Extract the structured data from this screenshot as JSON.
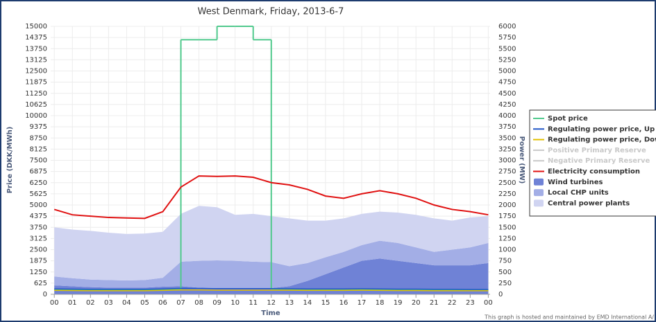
{
  "chart_data": {
    "type": "line",
    "title": "West Denmark, Friday, 2013-6-7",
    "y_label": "Price (DKK/MWh)",
    "y2_label": "Power (MW)",
    "x_label": "Time",
    "footnote": "This graph is hosted and maintained by EMD International A/",
    "x": [
      0,
      1,
      2,
      3,
      4,
      5,
      6,
      7,
      8,
      9,
      10,
      11,
      12,
      13,
      14,
      15,
      16,
      17,
      18,
      19,
      20,
      21,
      22,
      23,
      24
    ],
    "xlim": [
      -0.2,
      24.1
    ],
    "xticks": [
      {
        "value": 0,
        "label": "00"
      },
      {
        "value": 1,
        "label": "01"
      },
      {
        "value": 2,
        "label": "02"
      },
      {
        "value": 3,
        "label": "03"
      },
      {
        "value": 4,
        "label": "04"
      },
      {
        "value": 5,
        "label": "05"
      },
      {
        "value": 6,
        "label": "06"
      },
      {
        "value": 7,
        "label": "07"
      },
      {
        "value": 8,
        "label": "08"
      },
      {
        "value": 9,
        "label": "09"
      },
      {
        "value": 10,
        "label": "10"
      },
      {
        "value": 11,
        "label": "11"
      },
      {
        "value": 12,
        "label": "12"
      },
      {
        "value": 13,
        "label": "13"
      },
      {
        "value": 14,
        "label": "14"
      },
      {
        "value": 15,
        "label": "15"
      },
      {
        "value": 16,
        "label": "16"
      },
      {
        "value": 17,
        "label": "17"
      },
      {
        "value": 18,
        "label": "18"
      },
      {
        "value": 19,
        "label": "19"
      },
      {
        "value": 20,
        "label": "20"
      },
      {
        "value": 21,
        "label": "21"
      },
      {
        "value": 22,
        "label": "22"
      },
      {
        "value": 23,
        "label": "23"
      },
      {
        "value": 24,
        "label": "00"
      }
    ],
    "ylim": [
      0,
      15000
    ],
    "yticks": [
      0,
      625,
      1250,
      1875,
      2500,
      3125,
      3750,
      4375,
      5000,
      5625,
      6250,
      6875,
      7500,
      8125,
      8750,
      9375,
      10000,
      10625,
      11250,
      11875,
      12500,
      13125,
      13750,
      14375,
      15000
    ],
    "y2lim": [
      0,
      6000
    ],
    "y2ticks": [
      0,
      250,
      500,
      750,
      1000,
      1250,
      1500,
      1750,
      2000,
      2250,
      2500,
      2750,
      3000,
      3250,
      3500,
      3750,
      4000,
      4250,
      4500,
      4750,
      5000,
      5250,
      5500,
      5750,
      6000
    ],
    "grid": true,
    "legend": "right",
    "series": [
      {
        "name": "Spot price",
        "color": "#4fc98c",
        "kind": "step",
        "values": [
          270,
          260,
          250,
          250,
          250,
          250,
          260,
          14250,
          14250,
          15000,
          15000,
          14250,
          300,
          280,
          270,
          260,
          260,
          270,
          260,
          250,
          250,
          250,
          240,
          230,
          230
        ]
      },
      {
        "name": "Regulating power price, Up",
        "color": "#2156c8",
        "kind": "line",
        "values": [
          300,
          290,
          280,
          280,
          280,
          280,
          300,
          330,
          330,
          320,
          320,
          320,
          320,
          310,
          300,
          300,
          300,
          310,
          300,
          290,
          290,
          280,
          280,
          270,
          270
        ]
      },
      {
        "name": "Regulating power price, Down",
        "color": "#e2c000",
        "kind": "line",
        "values": [
          220,
          210,
          200,
          200,
          200,
          200,
          220,
          240,
          240,
          230,
          230,
          230,
          230,
          230,
          220,
          220,
          220,
          230,
          220,
          210,
          210,
          200,
          200,
          200,
          200
        ]
      },
      {
        "name": "Positive Primary Reserve",
        "color": "#c8c8c8",
        "kind": "hidden"
      },
      {
        "name": "Negative Primary Reserve",
        "color": "#c8c8c8",
        "kind": "hidden"
      },
      {
        "name": "Electricity consumption",
        "color": "#e01010",
        "kind": "line",
        "axis": "y2",
        "values": [
          1900,
          1780,
          1750,
          1720,
          1710,
          1700,
          1850,
          2400,
          2650,
          2640,
          2650,
          2620,
          2500,
          2450,
          2350,
          2200,
          2150,
          2250,
          2320,
          2250,
          2150,
          2000,
          1900,
          1850,
          1780
        ]
      },
      {
        "name": "Wind turbines",
        "color": "#6f82d6",
        "kind": "area",
        "axis": "y2",
        "values": [
          200,
          180,
          160,
          150,
          150,
          150,
          170,
          180,
          150,
          140,
          130,
          130,
          140,
          180,
          300,
          450,
          600,
          750,
          800,
          750,
          700,
          650,
          650,
          650,
          700
        ]
      },
      {
        "name": "Local CHP units",
        "color": "#a3aee6",
        "kind": "area",
        "axis": "y2",
        "values": [
          200,
          180,
          170,
          170,
          160,
          170,
          200,
          550,
          600,
          620,
          620,
          600,
          580,
          450,
          400,
          380,
          350,
          350,
          400,
          400,
          350,
          300,
          350,
          400,
          450
        ]
      },
      {
        "name": "Central power plants",
        "color": "#d0d4f1",
        "kind": "area",
        "axis": "y2",
        "values": [
          1100,
          1090,
          1090,
          1060,
          1040,
          1040,
          1030,
          1070,
          1230,
          1190,
          1030,
          1070,
          1030,
          1070,
          950,
          820,
          750,
          700,
          650,
          680,
          730,
          750,
          650,
          670,
          600
        ]
      }
    ]
  }
}
